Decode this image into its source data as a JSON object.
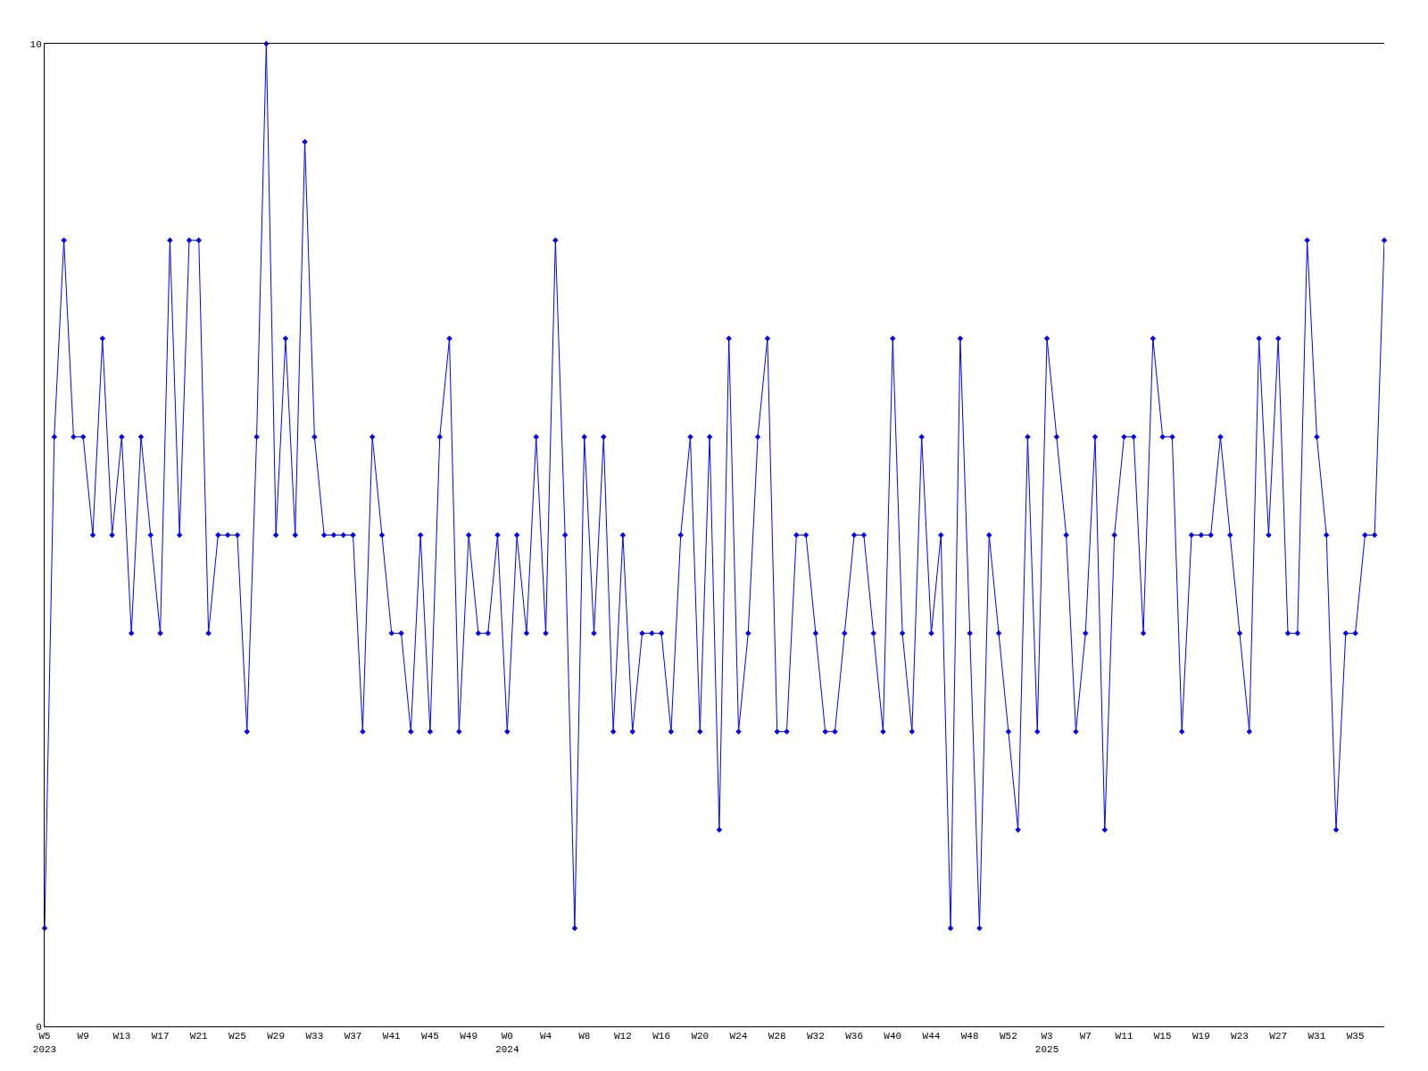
{
  "chart_data": {
    "type": "line",
    "categories": [
      "W5\n2023",
      null,
      null,
      null,
      "W9",
      null,
      null,
      null,
      "W13",
      null,
      null,
      null,
      "W17",
      null,
      null,
      null,
      "W21",
      null,
      null,
      null,
      "W25",
      null,
      null,
      null,
      "W29",
      null,
      null,
      null,
      "W33",
      null,
      null,
      null,
      "W37",
      null,
      null,
      null,
      "W41",
      null,
      null,
      null,
      "W45",
      null,
      null,
      null,
      "W49",
      null,
      null,
      null,
      "W0\n2024",
      null,
      null,
      null,
      "W4",
      null,
      null,
      null,
      "W8",
      null,
      null,
      null,
      "W12",
      null,
      null,
      null,
      "W16",
      null,
      null,
      null,
      "W20",
      null,
      null,
      null,
      "W24",
      null,
      null,
      null,
      "W28",
      null,
      null,
      null,
      "W32",
      null,
      null,
      null,
      "W36",
      null,
      null,
      null,
      "W40",
      null,
      null,
      null,
      "W44",
      null,
      null,
      null,
      "W48",
      null,
      null,
      null,
      "W52",
      null,
      null,
      null,
      "W3\n2025",
      null,
      null,
      null,
      "W7",
      null,
      null,
      null,
      "W11",
      null,
      null,
      null,
      "W15",
      null,
      null,
      null,
      "W19",
      null,
      null,
      null,
      "W23",
      null,
      null,
      null,
      "W27",
      null,
      null,
      null,
      "W31",
      null,
      null,
      null,
      "W35",
      null,
      null,
      null
    ],
    "series": [
      {
        "color": "#0000ff",
        "values": [
          1,
          6,
          8,
          6,
          6,
          5,
          7,
          5,
          6,
          4,
          6,
          5,
          4,
          8,
          5,
          8,
          8,
          4,
          5,
          5,
          5,
          3,
          6,
          10,
          5,
          7,
          5,
          9,
          6,
          5,
          5,
          5,
          5,
          3,
          6,
          5,
          4,
          4,
          3,
          5,
          3,
          6,
          7,
          3,
          5,
          4,
          4,
          5,
          3,
          5,
          4,
          6,
          4,
          8,
          5,
          1,
          6,
          4,
          6,
          3,
          5,
          3,
          4,
          4,
          4,
          3,
          5,
          6,
          3,
          6,
          2,
          7,
          3,
          4,
          6,
          7,
          3,
          3,
          5,
          5,
          4,
          3,
          3,
          4,
          5,
          5,
          4,
          3,
          7,
          4,
          3,
          6,
          4,
          5,
          1,
          7,
          4,
          1,
          5,
          4,
          3,
          2,
          6,
          3,
          7,
          6,
          5,
          3,
          4,
          6,
          2,
          5,
          6,
          6,
          4,
          7,
          6,
          6,
          3,
          5,
          5,
          5,
          6,
          5,
          4,
          3,
          7,
          5,
          7,
          4,
          4,
          8,
          6,
          5,
          2,
          4,
          4,
          5,
          5,
          8
        ]
      }
    ],
    "ylim": [
      0,
      10
    ],
    "yticks": [
      0,
      10
    ],
    "marker": "diamond",
    "line_style": "solid"
  }
}
